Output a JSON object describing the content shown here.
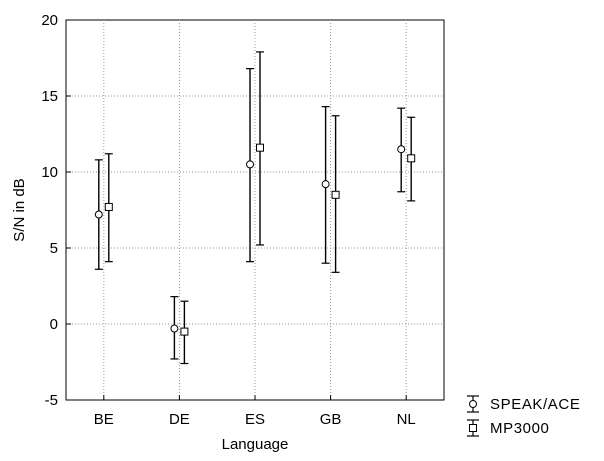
{
  "chart_data": {
    "type": "errorbar",
    "xlabel": "Language",
    "ylabel": "S/N in dB",
    "categories": [
      "BE",
      "DE",
      "ES",
      "GB",
      "NL"
    ],
    "ylim": [
      -5,
      20
    ],
    "yticks": [
      -5,
      0,
      5,
      10,
      15,
      20
    ],
    "yticklabels": [
      "-5",
      "0",
      "5",
      "10",
      "15",
      "20"
    ],
    "grid": "dotted",
    "legend_position": "bottom-right outside",
    "series": [
      {
        "name": "SPEAK/ACE",
        "marker": "circle",
        "mean": [
          7.2,
          -0.3,
          10.5,
          9.2,
          11.5
        ],
        "lower": [
          3.6,
          -2.3,
          4.1,
          4.0,
          8.7
        ],
        "upper": [
          10.8,
          1.8,
          16.8,
          14.3,
          14.2
        ]
      },
      {
        "name": "MP3000",
        "marker": "square",
        "mean": [
          7.7,
          -0.5,
          11.6,
          8.5,
          10.9
        ],
        "lower": [
          4.1,
          -2.6,
          5.2,
          3.4,
          8.1
        ],
        "upper": [
          11.2,
          1.5,
          17.9,
          13.7,
          13.6
        ]
      }
    ]
  }
}
